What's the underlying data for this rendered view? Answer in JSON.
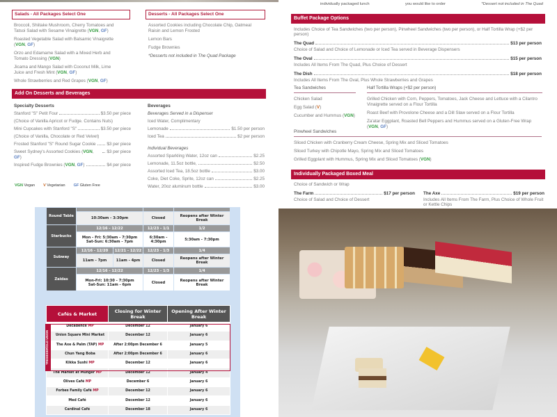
{
  "left_menu": {
    "salads": {
      "title": "Salads - All Packages Select One",
      "items": [
        {
          "text": "Broccoli, Shiitake Mushroom, Cherry Tomatoes and Tatsoi Salad with Sesame Vinaigrette",
          "tags": [
            "VGN",
            "GF"
          ]
        },
        {
          "text": "Roasted Vegetable Salad with Balsamic Vinaigrette",
          "tags": [
            "VGN",
            "GF"
          ]
        },
        {
          "text": "Orzo and Edamame Salad with a Mixed Herb and Tomato Dressing",
          "tags": [
            "VGN"
          ]
        },
        {
          "text": "Jicama and Mango Salad with Coconut Milk, Lime Juice and Fresh Mint",
          "tags": [
            "VGN",
            "GF"
          ]
        },
        {
          "text": "Whole Strawberries and Red Grapes",
          "tags": [
            "VGN",
            "GF"
          ]
        }
      ]
    },
    "desserts": {
      "title": "Desserts - All Packages Select One",
      "items": [
        "Assorted Cookies including Chocolate Chip, Oatmeal Raisin and Lemon Frosted",
        "Lemon Bars",
        "Fudge Brownies"
      ],
      "note": "*Desserts not included in The Quad Package"
    },
    "addon": {
      "title": "Add On Desserts and Beverages",
      "specialty_title": "Specialty Desserts",
      "specialty": [
        {
          "name": "Stanford \"S\" Petit Four",
          "price": "$3.50 per piece",
          "sub": "(Choice of Vanilla Apricot or Fudge. Contains Nuts)"
        },
        {
          "name": "Mini Cupcakes with Stanford \"S\"",
          "price": "$3.50 per piece",
          "sub": "(Choice of Vanilla, Chocolate or Red Velvet)"
        },
        {
          "name": "Frosted Stanford \"S\" Round Sugar Cookie",
          "price": "$3 per piece"
        },
        {
          "name": "Sweet Sydney's Assorted Cookies (VGN, GF)",
          "price": "$3 per piece"
        },
        {
          "name": "Inspired Fudge Brownies (VGN, GF)",
          "price": "$4 per piece"
        }
      ],
      "beverages_title": "Beverages",
      "dispenser_title": "Beverages Served in a Dispenser",
      "dispenser": [
        {
          "name": "Iced Water, Complimentary",
          "price": ""
        },
        {
          "name": "Lemonade",
          "price": "$1.50 per person"
        },
        {
          "name": "Iced Tea",
          "price": "$2 per person"
        }
      ],
      "individual_title": "Individual Beverages",
      "individual": [
        {
          "name": "Assorted Sparkling Water, 12oz can",
          "price": "$2.25"
        },
        {
          "name": "Lemonade, 11.5oz bottle,",
          "price": "$2.50"
        },
        {
          "name": "Assorted Iced Tea, 18.5oz bottle",
          "price": "$3.00"
        },
        {
          "name": "Coke, Diet Coke, Sprite, 12oz can",
          "price": "$2.25"
        },
        {
          "name": "Water, 20oz aluminum bottle",
          "price": "$3.00"
        }
      ]
    },
    "legend": [
      {
        "code": "VGN",
        "label": "Vegan"
      },
      {
        "code": "V",
        "label": "Vegetarian"
      },
      {
        "code": "GF",
        "label": "Gluten Free"
      }
    ]
  },
  "right_menu": {
    "top_cut": [
      "individually packaged lunch",
      "you would like to order",
      "*Dessert not included in The Quad"
    ],
    "buffet": {
      "title": "Buffet Package Options",
      "intro": "Includes Choice of Tea Sandwiches (two per person), Pinwheel Sandwiches (two per person), or Half Tortilla Wrap (+$2 per person)",
      "packages": [
        {
          "name": "The Quad",
          "price": "$13 per person",
          "desc": "Choice of Salad and Choice of Lemonade or Iced Tea served in Beverage Dispensers"
        },
        {
          "name": "The Oval",
          "price": "$15 per person",
          "desc": "Includes All Items From The Quad, Plus Choice of Dessert"
        },
        {
          "name": "The Dish",
          "price": "$18 per person",
          "desc": "Includes All Items From The Oval, Plus Whole Strawberries and Grapes"
        }
      ]
    },
    "tea_title": "Tea Sandwiches",
    "tea": [
      "Chicken Salad",
      "Egg Salad (V)",
      "Cucumber and Hummus (VGN)"
    ],
    "wraps_title": "Half Tortilla Wraps (+$2 per person)",
    "wraps": [
      "Grilled Chicken with Corn, Peppers, Tomatoes, Jack Cheese and Lettuce with a Cilantro Vinaigrette served on a Flour Tortilla",
      "Roast Beef with Provolone Cheese and a Dill Slaw served on a Flour Tortilla",
      "Za'atar Eggplant, Roasted Bell Peppers and Hummus served on a Gluten-Free Wrap (VGN, GF)"
    ],
    "pinwheel_title": "Pinwheel Sandwiches",
    "pinwheel": [
      "Sliced Chicken with Cranberry Cream Cheese, Spring Mix and Sliced Tomatoes",
      "Sliced Turkey with Chipotle Mayo, Spring Mix and Sliced Tomatoes",
      "Grilled Eggplant with Hummus, Spring Mix and Sliced Tomatoes (VGN)"
    ],
    "boxed": {
      "title": "Individually Packaged Boxed Meal",
      "intro": "Choice of Sandwich or Wrap",
      "packages": [
        {
          "name": "The Farm",
          "price": "$17 per person",
          "desc": "Choice of Salad and Choice of Dessert"
        },
        {
          "name": "The Axe",
          "price": "$19 per person",
          "desc": "Includes All Items From The Farm, Plus Choice of Whole Fruit or Kettle Chips"
        }
      ]
    }
  },
  "hours": {
    "round_table": {
      "name": "Round Table",
      "hours": "10:30am - 3:30pm",
      "break": "Closed",
      "after": "Reopens after Winter Break"
    },
    "starbucks": {
      "name": "Starbucks",
      "d1": "12/16 - 12/22",
      "d2": "12/23 - 1/1",
      "d3": "1/2",
      "h1a": "Mon - Fri: 5:30am - 7:30pm",
      "h1b": "Sat-Sun: 6:30am - 7pm",
      "h2": "6:30am - 4:30pm",
      "h3": "5:30am - 7:30pm"
    },
    "subway": {
      "name": "Subway",
      "d1": "12/16 - 12/20",
      "d2": "12/21 - 12/22",
      "d3": "12/23 - 1/3",
      "d4": "1/4",
      "h1": "11am - 7pm",
      "h2": "11am - 4pm",
      "h3": "Closed",
      "h4": "Reopens after Winter Break"
    },
    "zaidas": {
      "name": "Zaidas",
      "d1": "12/16 - 12/22",
      "d2": "12/23 - 1/3",
      "d3": "1/4",
      "h1a": "Mon-Fri: 10:30 - 7:30pm",
      "h1b": "Sat-Sun: 11am - 6pm",
      "h2": "Closed",
      "h3": "Reopens after Winter Break"
    },
    "cafes": {
      "headers": [
        "Cafés & Market",
        "Closing for Winter Break",
        "Opening After Winter Break"
      ],
      "group_label": "TRESIDDER/OLD UNION",
      "mp": "MP",
      "rows": [
        [
          "Decadence",
          true,
          "December 12",
          "January 6"
        ],
        [
          "Union Square Mini Market",
          false,
          "December 12",
          "January 6"
        ],
        [
          "The Axe & Palm (TAP)",
          true,
          "After 2:00pm  December 6",
          "January 5"
        ],
        [
          "Chun Yang Boba",
          false,
          "After 2:00pm December 6",
          "January 6"
        ],
        [
          "Kikka Sushi",
          true,
          "December 12",
          "January 6"
        ],
        [
          "The Market at Munger",
          true,
          "December 12",
          "January 4"
        ],
        [
          "Olives Café",
          true,
          "December 6",
          "January 6"
        ],
        [
          "Forbes Family Café",
          true,
          "December 12",
          "January 6"
        ],
        [
          "Med Café",
          false,
          "December 12",
          "January 6"
        ],
        [
          "Cardinal Café",
          false,
          "December 18",
          "January 6"
        ]
      ]
    }
  },
  "colors": {
    "accent": "#b5103a",
    "vegan": "#2f9a3b",
    "gluten_free": "#5a7fc0",
    "vegetarian": "#c8641e",
    "panel": "#cfe0f3"
  }
}
